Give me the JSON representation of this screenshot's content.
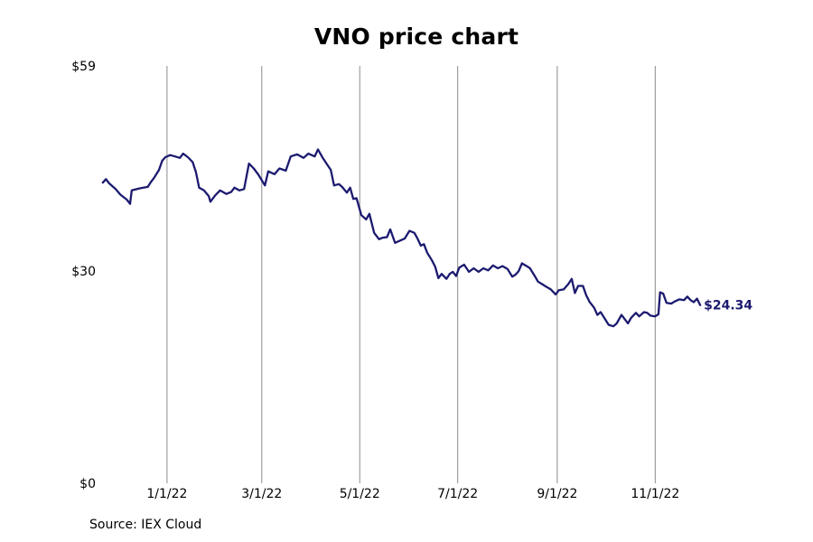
{
  "chart_data": {
    "type": "line",
    "title": "VNO price chart",
    "source": "Source: IEX Cloud",
    "ylim": [
      0,
      59
    ],
    "yticks": [
      {
        "value": 0,
        "label": "$0"
      },
      {
        "value": 30,
        "label": "$30"
      },
      {
        "value": 59,
        "label": "$59"
      }
    ],
    "xlim": [
      "2021-11-21",
      "2022-12-13"
    ],
    "xticks": [
      {
        "date": "2022-01-01",
        "label": "1/1/22"
      },
      {
        "date": "2022-03-01",
        "label": "3/1/22"
      },
      {
        "date": "2022-05-01",
        "label": "5/1/22"
      },
      {
        "date": "2022-07-01",
        "label": "7/1/22"
      },
      {
        "date": "2022-09-01",
        "label": "9/1/22"
      },
      {
        "date": "2022-11-01",
        "label": "11/1/22"
      }
    ],
    "grid": "vertical",
    "last_label": "$24.34",
    "series": [
      {
        "color": "#1c1a6f",
        "points": [
          [
            "2021-11-22",
            42.5
          ],
          [
            "2021-11-24",
            43.0
          ],
          [
            "2021-11-26",
            42.4
          ],
          [
            "2021-11-30",
            41.6
          ],
          [
            "2021-12-03",
            40.8
          ],
          [
            "2021-12-07",
            40.1
          ],
          [
            "2021-12-09",
            39.5
          ],
          [
            "2021-12-10",
            41.4
          ],
          [
            "2021-12-15",
            41.7
          ],
          [
            "2021-12-20",
            41.9
          ],
          [
            "2021-12-22",
            42.6
          ],
          [
            "2021-12-24",
            43.2
          ],
          [
            "2021-12-27",
            44.3
          ],
          [
            "2021-12-29",
            45.6
          ],
          [
            "2021-12-31",
            46.1
          ],
          [
            "2022-01-03",
            46.4
          ],
          [
            "2022-01-06",
            46.2
          ],
          [
            "2022-01-09",
            46.0
          ],
          [
            "2022-01-11",
            46.6
          ],
          [
            "2022-01-14",
            46.1
          ],
          [
            "2022-01-17",
            45.4
          ],
          [
            "2022-01-19",
            44.0
          ],
          [
            "2022-01-21",
            41.8
          ],
          [
            "2022-01-24",
            41.4
          ],
          [
            "2022-01-27",
            40.6
          ],
          [
            "2022-01-28",
            39.8
          ],
          [
            "2022-01-31",
            40.7
          ],
          [
            "2022-02-03",
            41.4
          ],
          [
            "2022-02-07",
            40.9
          ],
          [
            "2022-02-10",
            41.2
          ],
          [
            "2022-02-12",
            41.8
          ],
          [
            "2022-02-15",
            41.4
          ],
          [
            "2022-02-18",
            41.6
          ],
          [
            "2022-02-21",
            45.2
          ],
          [
            "2022-02-24",
            44.5
          ],
          [
            "2022-02-27",
            43.6
          ],
          [
            "2022-03-03",
            42.1
          ],
          [
            "2022-03-05",
            44.1
          ],
          [
            "2022-03-09",
            43.7
          ],
          [
            "2022-03-12",
            44.5
          ],
          [
            "2022-03-16",
            44.2
          ],
          [
            "2022-03-19",
            46.2
          ],
          [
            "2022-03-23",
            46.5
          ],
          [
            "2022-03-27",
            46.0
          ],
          [
            "2022-03-30",
            46.6
          ],
          [
            "2022-04-03",
            46.2
          ],
          [
            "2022-04-05",
            47.2
          ],
          [
            "2022-04-08",
            46.0
          ],
          [
            "2022-04-10",
            45.3
          ],
          [
            "2022-04-13",
            44.3
          ],
          [
            "2022-04-15",
            42.1
          ],
          [
            "2022-04-18",
            42.3
          ],
          [
            "2022-04-20",
            41.9
          ],
          [
            "2022-04-23",
            41.1
          ],
          [
            "2022-04-25",
            41.8
          ],
          [
            "2022-04-27",
            40.2
          ],
          [
            "2022-04-29",
            40.3
          ],
          [
            "2022-05-02",
            37.9
          ],
          [
            "2022-05-05",
            37.3
          ],
          [
            "2022-05-07",
            38.1
          ],
          [
            "2022-05-10",
            35.4
          ],
          [
            "2022-05-13",
            34.5
          ],
          [
            "2022-05-15",
            34.7
          ],
          [
            "2022-05-18",
            34.8
          ],
          [
            "2022-05-20",
            35.9
          ],
          [
            "2022-05-23",
            34.0
          ],
          [
            "2022-05-26",
            34.3
          ],
          [
            "2022-05-29",
            34.6
          ],
          [
            "2022-06-01",
            35.7
          ],
          [
            "2022-06-04",
            35.4
          ],
          [
            "2022-06-06",
            34.6
          ],
          [
            "2022-06-08",
            33.6
          ],
          [
            "2022-06-10",
            33.8
          ],
          [
            "2022-06-12",
            32.6
          ],
          [
            "2022-06-15",
            31.5
          ],
          [
            "2022-06-17",
            30.6
          ],
          [
            "2022-06-19",
            29.0
          ],
          [
            "2022-06-21",
            29.6
          ],
          [
            "2022-06-24",
            28.9
          ],
          [
            "2022-06-26",
            29.6
          ],
          [
            "2022-06-28",
            29.9
          ],
          [
            "2022-06-30",
            29.3
          ],
          [
            "2022-07-02",
            30.5
          ],
          [
            "2022-07-05",
            30.9
          ],
          [
            "2022-07-08",
            29.9
          ],
          [
            "2022-07-11",
            30.4
          ],
          [
            "2022-07-14",
            29.9
          ],
          [
            "2022-07-17",
            30.4
          ],
          [
            "2022-07-20",
            30.1
          ],
          [
            "2022-07-23",
            30.8
          ],
          [
            "2022-07-26",
            30.4
          ],
          [
            "2022-07-29",
            30.7
          ],
          [
            "2022-08-01",
            30.3
          ],
          [
            "2022-08-04",
            29.2
          ],
          [
            "2022-08-06",
            29.5
          ],
          [
            "2022-08-08",
            30.0
          ],
          [
            "2022-08-10",
            31.1
          ],
          [
            "2022-08-13",
            30.7
          ],
          [
            "2022-08-15",
            30.4
          ],
          [
            "2022-08-18",
            29.3
          ],
          [
            "2022-08-20",
            28.5
          ],
          [
            "2022-08-23",
            28.1
          ],
          [
            "2022-08-25",
            27.8
          ],
          [
            "2022-08-28",
            27.4
          ],
          [
            "2022-08-31",
            26.7
          ],
          [
            "2022-09-02",
            27.3
          ],
          [
            "2022-09-05",
            27.4
          ],
          [
            "2022-09-08",
            28.2
          ],
          [
            "2022-09-10",
            28.9
          ],
          [
            "2022-09-12",
            26.9
          ],
          [
            "2022-09-14",
            27.9
          ],
          [
            "2022-09-17",
            27.9
          ],
          [
            "2022-09-19",
            26.6
          ],
          [
            "2022-09-21",
            25.7
          ],
          [
            "2022-09-24",
            24.8
          ],
          [
            "2022-09-26",
            23.8
          ],
          [
            "2022-09-28",
            24.2
          ],
          [
            "2022-09-30",
            23.5
          ],
          [
            "2022-10-03",
            22.4
          ],
          [
            "2022-10-06",
            22.2
          ],
          [
            "2022-10-08",
            22.6
          ],
          [
            "2022-10-11",
            23.8
          ],
          [
            "2022-10-13",
            23.2
          ],
          [
            "2022-10-15",
            22.6
          ],
          [
            "2022-10-17",
            23.4
          ],
          [
            "2022-10-20",
            24.1
          ],
          [
            "2022-10-22",
            23.6
          ],
          [
            "2022-10-25",
            24.2
          ],
          [
            "2022-10-27",
            24.1
          ],
          [
            "2022-10-29",
            23.7
          ],
          [
            "2022-11-01",
            23.6
          ],
          [
            "2022-11-03",
            23.9
          ],
          [
            "2022-11-04",
            27.0
          ],
          [
            "2022-11-06",
            26.8
          ],
          [
            "2022-11-08",
            25.5
          ],
          [
            "2022-11-11",
            25.4
          ],
          [
            "2022-11-13",
            25.7
          ],
          [
            "2022-11-16",
            26.0
          ],
          [
            "2022-11-19",
            25.9
          ],
          [
            "2022-11-21",
            26.4
          ],
          [
            "2022-11-23",
            25.9
          ],
          [
            "2022-11-25",
            25.6
          ],
          [
            "2022-11-27",
            26.1
          ],
          [
            "2022-11-29",
            25.2
          ]
        ]
      }
    ]
  }
}
